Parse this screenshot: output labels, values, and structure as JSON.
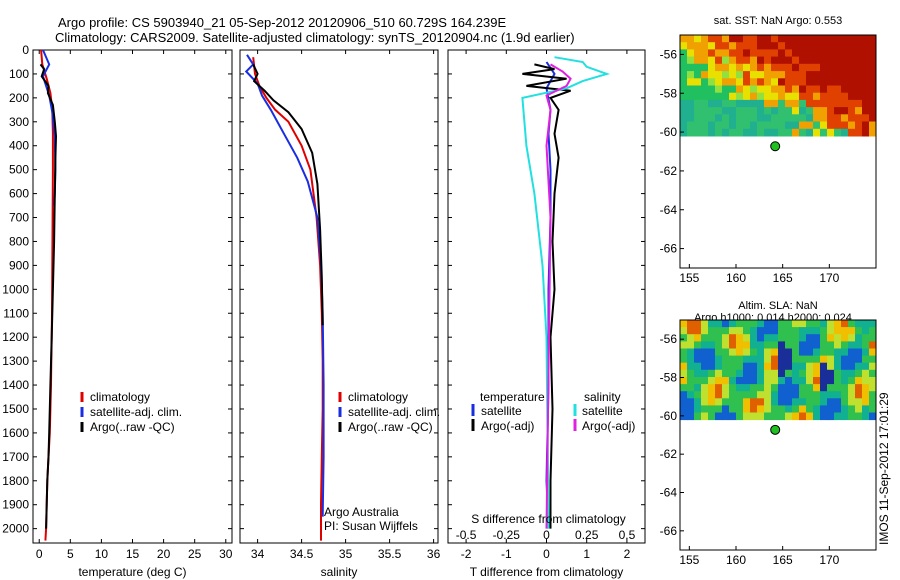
{
  "header": {
    "line1": "Argo profile: CS 5903940_21 05-Sep-2012 20120906_510 60.729S 164.239E",
    "line2": "Climatology: CARS2009. Satellite-adjusted climatology: synTS_20120904.nc (1.9d earlier)"
  },
  "side_label": "IMOS 11-Sep-2012 17:01:29",
  "colors": {
    "climatology": "#e00000",
    "satellite": "#1a2ee0",
    "argo": "#000000",
    "sat_salinity": "#22e0e0",
    "argo_salinity": "#e020e0"
  },
  "chart_data": [
    {
      "type": "line",
      "xlabel": "temperature (deg C)",
      "ylabel": "",
      "xlim": [
        -1,
        31
      ],
      "ylim": [
        2060,
        0
      ],
      "xticks": [
        0,
        5,
        10,
        15,
        20,
        25,
        30
      ],
      "yticks": [
        0,
        100,
        200,
        300,
        400,
        500,
        600,
        700,
        800,
        900,
        1000,
        1100,
        1200,
        1300,
        1400,
        1500,
        1600,
        1700,
        1800,
        1900,
        2000
      ],
      "legend": [
        "climatology",
        "satellite-adj. clim.",
        "Argo(..raw -QC)"
      ],
      "series": [
        {
          "name": "climatology",
          "color": "#e00000",
          "x": [
            0.3,
            0.5,
            1.2,
            1.8,
            2.1,
            2.2,
            2.2,
            2.15,
            2.1,
            2.05,
            2.0,
            1.95,
            1.9,
            1.8,
            1.7,
            1.5,
            1.3,
            1.2,
            1.1,
            1.0
          ],
          "y": [
            0,
            60,
            120,
            180,
            250,
            350,
            500,
            700,
            900,
            1100,
            1200,
            1300,
            1400,
            1500,
            1600,
            1700,
            1800,
            1900,
            2000,
            2050
          ]
        },
        {
          "name": "satellite-adj. clim.",
          "color": "#1a2ee0",
          "x": [
            0.6,
            1.6,
            0.6,
            1.6,
            2.1,
            2.5,
            2.6,
            2.5,
            2.4
          ],
          "y": [
            0,
            60,
            110,
            190,
            260,
            360,
            500,
            600,
            650
          ]
        },
        {
          "name": "Argo(..raw -QC)",
          "color": "#000000",
          "x": [
            0.2,
            0.8,
            0.4,
            1.5,
            1.4,
            2.2,
            2.5,
            2.7,
            2.6,
            2.5,
            2.4,
            2.2,
            2.0,
            1.8,
            1.6,
            1.5,
            1.3,
            1.2,
            1.1
          ],
          "y": [
            60,
            80,
            110,
            150,
            180,
            230,
            300,
            360,
            450,
            600,
            800,
            1000,
            1200,
            1400,
            1600,
            1700,
            1800,
            1900,
            2000
          ]
        }
      ]
    },
    {
      "type": "line",
      "xlabel": "salinity",
      "ylabel": "",
      "xlim": [
        33.8,
        36.05
      ],
      "ylim": [
        2060,
        0
      ],
      "xticks": [
        34,
        34.5,
        35,
        35.5,
        36
      ],
      "xticklabels": [
        "34",
        "34.5",
        "35",
        "35.5",
        "36"
      ],
      "legend": [
        "climatology",
        "satellite-adj. clim.",
        "Argo(..raw -QC)"
      ],
      "annotations": [
        "Argo Australia",
        "PI: Susan Wijffels"
      ],
      "series": [
        {
          "name": "climatology",
          "color": "#e00000",
          "x": [
            33.95,
            33.97,
            34.02,
            34.1,
            34.2,
            34.35,
            34.5,
            34.6,
            34.67,
            34.71,
            34.73,
            34.74,
            34.74,
            34.73,
            34.72,
            34.72
          ],
          "y": [
            30,
            100,
            150,
            200,
            250,
            300,
            400,
            500,
            700,
            900,
            1100,
            1300,
            1500,
            1700,
            1900,
            2050
          ]
        },
        {
          "name": "satellite-adj. clim.",
          "color": "#1a2ee0",
          "x": [
            33.88,
            33.95,
            33.87,
            34.0,
            34.05,
            34.15,
            34.3,
            34.45,
            34.57,
            34.68,
            34.72,
            34.74,
            34.75,
            34.75,
            34.74
          ],
          "y": [
            20,
            60,
            90,
            140,
            190,
            250,
            350,
            450,
            550,
            700,
            900,
            1100,
            1400,
            1700,
            1950
          ]
        },
        {
          "name": "Argo(..raw -QC)",
          "color": "#000000",
          "x": [
            33.95,
            34.0,
            33.96,
            34.08,
            34.18,
            34.35,
            34.5,
            34.62,
            34.68,
            34.71,
            34.73,
            34.74
          ],
          "y": [
            60,
            100,
            130,
            170,
            210,
            260,
            330,
            430,
            560,
            750,
            950,
            1150
          ]
        }
      ]
    },
    {
      "type": "line",
      "xlabel": "T difference from climatology",
      "x2label": "S difference from climatology",
      "ylabel": "",
      "xlim": [
        -2.45,
        2.45
      ],
      "ylim": [
        2060,
        0
      ],
      "xticks": [
        -2,
        -1,
        0,
        1,
        2
      ],
      "x2ticks": [
        "-0.5",
        "-0.25",
        "0",
        "0.25",
        "0.5"
      ],
      "legend_temperature": {
        "title": "temperature",
        "satellite": "satellite",
        "argo": "Argo(-adj)"
      },
      "legend_salinity": {
        "title": "salinity",
        "satellite": "satellite",
        "argo": "Argo(-adj)"
      },
      "series": [
        {
          "name": "temperature satellite",
          "color": "#1a2ee0",
          "x": [
            0.0,
            0.2,
            0.0,
            0.1,
            0.05,
            0.1,
            0.1,
            0.05,
            0.05,
            0.0,
            0.05
          ],
          "y": [
            50,
            100,
            160,
            250,
            350,
            500,
            700,
            1000,
            1400,
            1800,
            2000
          ]
        },
        {
          "name": "temperature Argo(-adj)",
          "color": "#000000",
          "x": [
            -0.3,
            0.2,
            -0.6,
            0.5,
            -0.5,
            0.6,
            0.1,
            0.3,
            0.2,
            0.3,
            0.2,
            0.15,
            0.2,
            0.1,
            0.15,
            0.1,
            0.1
          ],
          "y": [
            60,
            80,
            100,
            120,
            150,
            170,
            200,
            250,
            350,
            450,
            600,
            800,
            1000,
            1200,
            1500,
            1800,
            2000
          ]
        },
        {
          "name": "salinity satellite",
          "color": "#22e0e0",
          "x": [
            0.2,
            0.9,
            1.0,
            1.5,
            0.9,
            0.5,
            -0.6,
            -0.5,
            -0.3,
            -0.1,
            0.0,
            0.05
          ],
          "y": [
            30,
            50,
            70,
            100,
            130,
            160,
            200,
            400,
            600,
            900,
            1200,
            2000
          ]
        },
        {
          "name": "salinity Argo(-adj)",
          "color": "#e020e0",
          "x": [
            0.1,
            0.4,
            0.6,
            0.5,
            0.0,
            0.1,
            0.0,
            0.1,
            0.0
          ],
          "y": [
            60,
            90,
            120,
            150,
            190,
            250,
            400,
            700,
            2000
          ]
        }
      ]
    },
    {
      "type": "heatmap",
      "title": "sat. SST: NaN Argo: 0.553",
      "xlim": [
        154,
        175
      ],
      "ylim": [
        -67,
        -55
      ],
      "xticks": [
        155,
        160,
        165,
        170
      ],
      "yticks": [
        -56,
        -58,
        -60,
        -62,
        -64,
        -66
      ],
      "marker": {
        "lon": 164.2,
        "lat": -60.73
      }
    },
    {
      "type": "heatmap",
      "title": "Altim. SLA: NaN",
      "subtitle": "Argo h1000: 0.014 h2000: 0.024",
      "xlim": [
        154,
        175
      ],
      "ylim": [
        -67,
        -55
      ],
      "xticks": [
        155,
        160,
        165,
        170
      ],
      "yticks": [
        -56,
        -58,
        -60,
        -62,
        -64,
        -66
      ],
      "marker": {
        "lon": 164.2,
        "lat": -60.73
      }
    }
  ]
}
